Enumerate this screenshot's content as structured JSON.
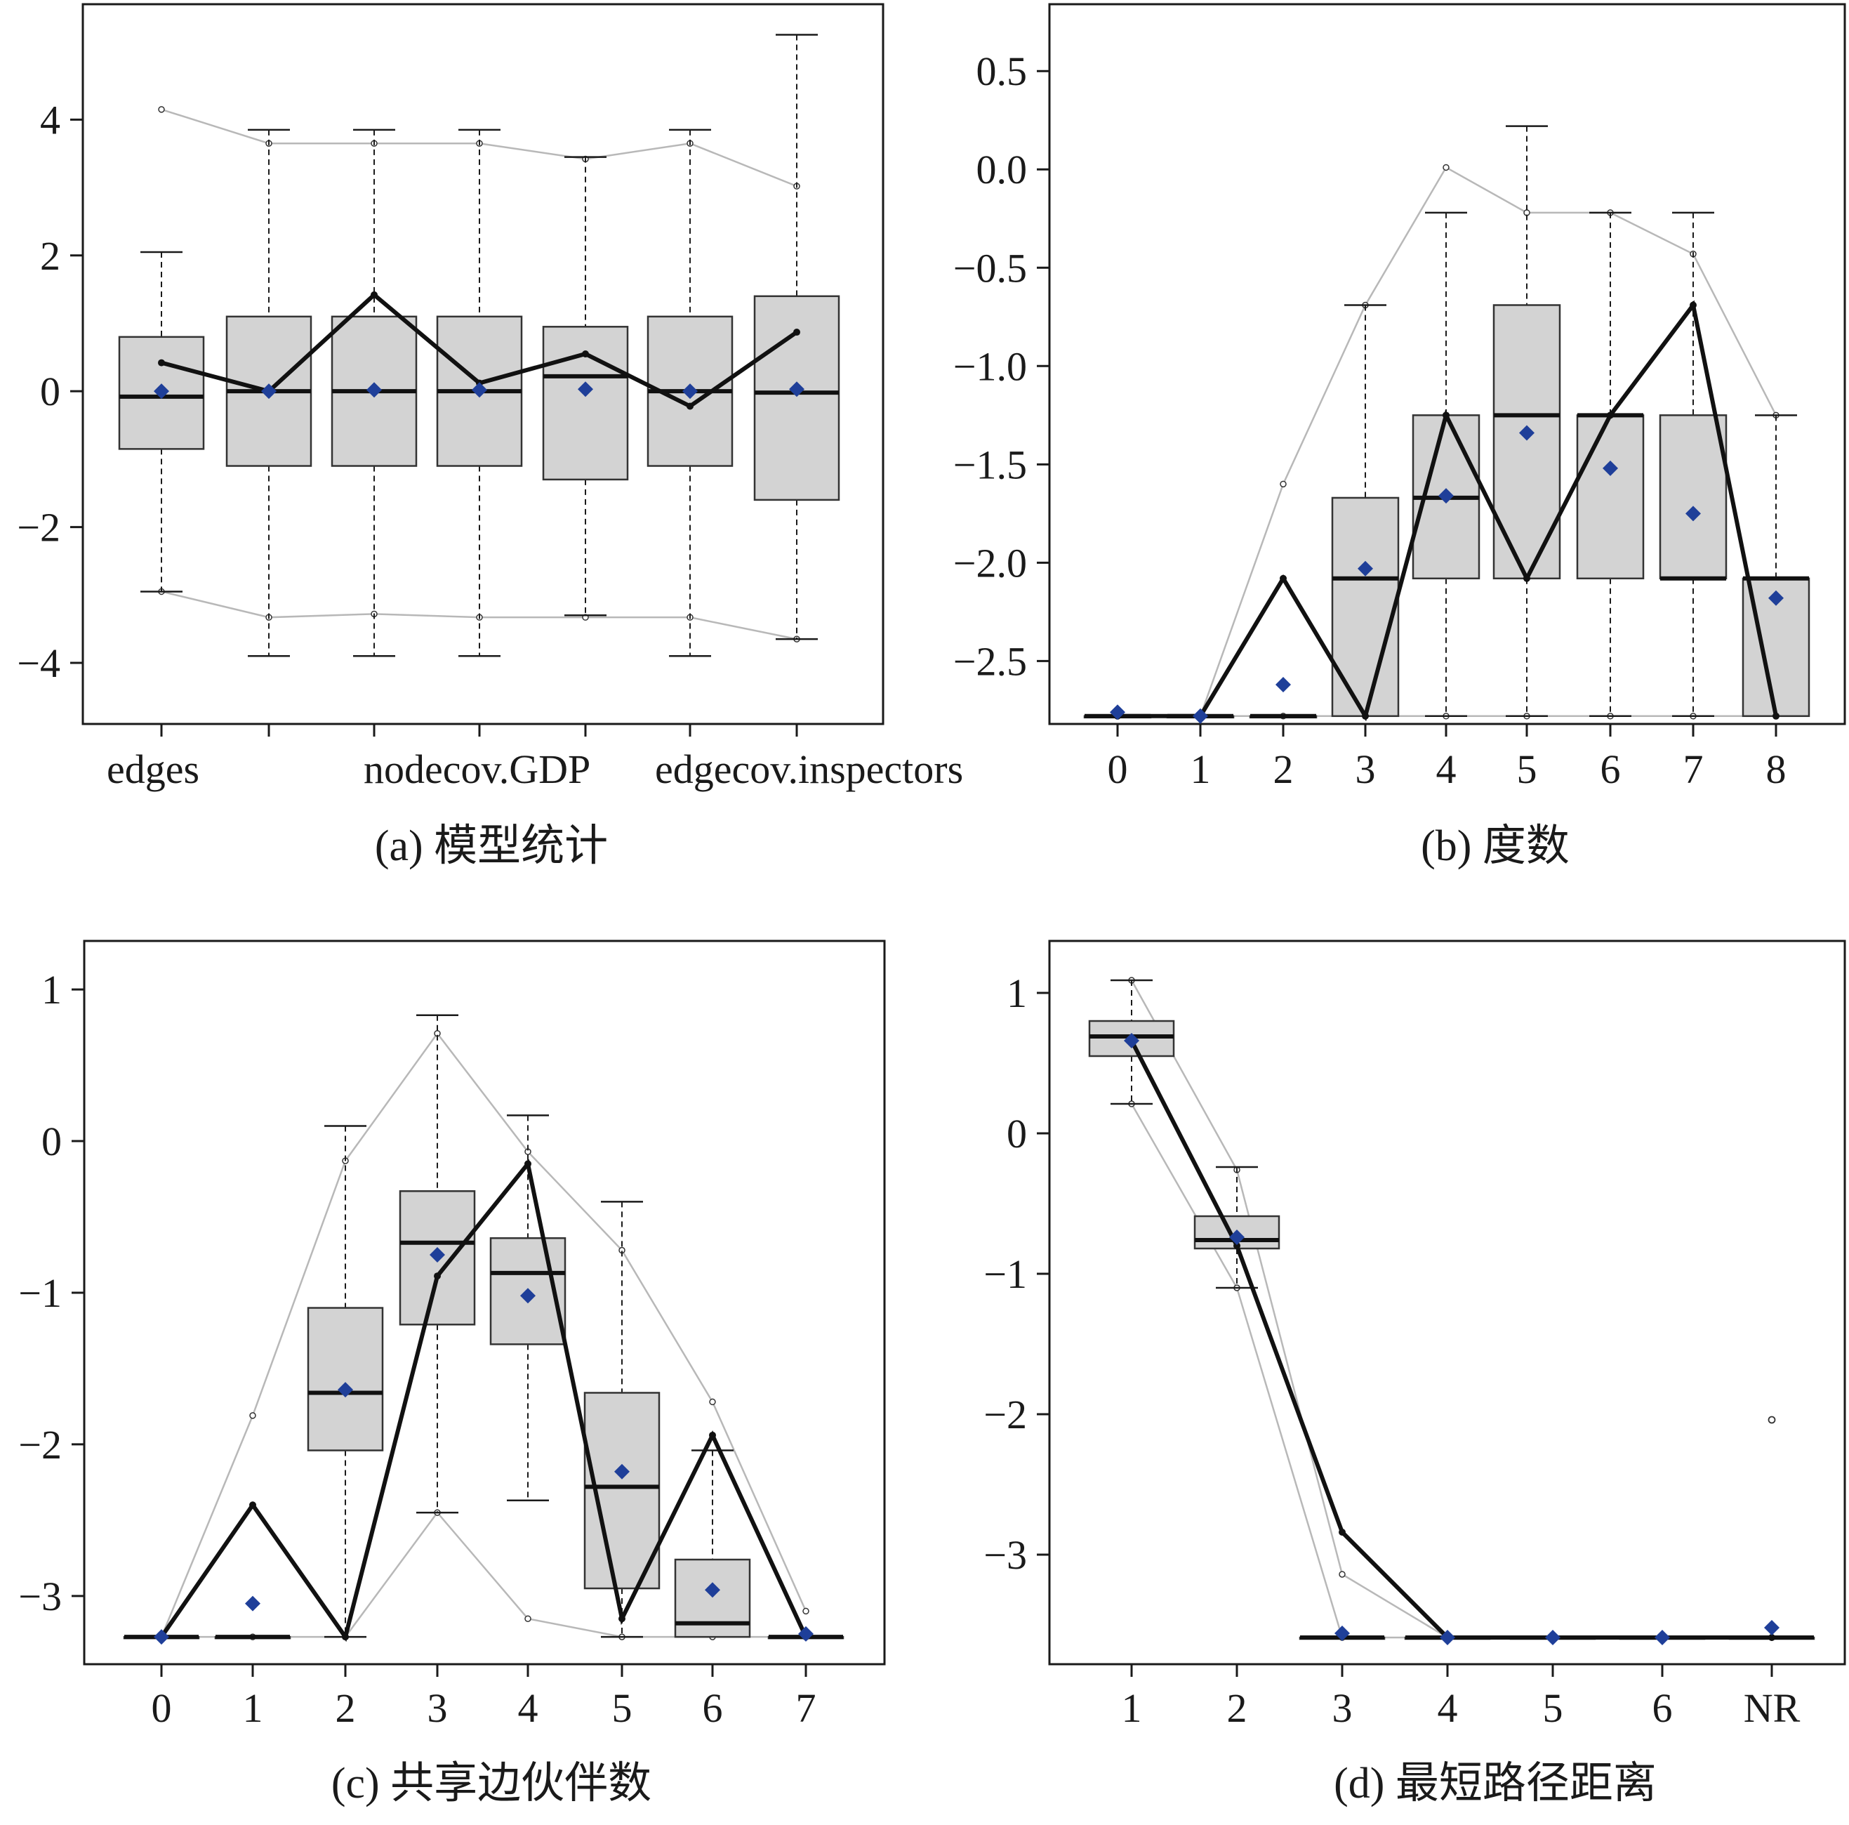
{
  "chart_data": [
    {
      "type": "box",
      "caption": "(a) 模型统计",
      "categories": [
        "edges",
        "",
        "",
        "",
        "nodecov.GDP",
        "",
        "edgecov.inspectors"
      ],
      "y_ticks": [
        4,
        2,
        0,
        -2,
        -4
      ],
      "ylim": [
        -4.9,
        5.7
      ],
      "boxes": [
        {
          "whisker_low": -2.95,
          "q1": -0.85,
          "median": -0.08,
          "q3": 0.8,
          "whisker_high": 2.05
        },
        {
          "whisker_low": -3.9,
          "q1": -1.1,
          "median": 0.0,
          "q3": 1.1,
          "whisker_high": 3.85
        },
        {
          "whisker_low": -3.9,
          "q1": -1.1,
          "median": 0.0,
          "q3": 1.1,
          "whisker_high": 3.85
        },
        {
          "whisker_low": -3.9,
          "q1": -1.1,
          "median": 0.0,
          "q3": 1.1,
          "whisker_high": 3.85
        },
        {
          "whisker_low": -3.3,
          "q1": -1.3,
          "median": 0.22,
          "q3": 0.95,
          "whisker_high": 3.45
        },
        {
          "whisker_low": -3.9,
          "q1": -1.1,
          "median": 0.0,
          "q3": 1.1,
          "whisker_high": 3.85
        },
        {
          "whisker_low": -3.65,
          "q1": -1.6,
          "median": -0.02,
          "q3": 1.4,
          "whisker_high": 5.25
        }
      ],
      "means": [
        0.0,
        0.0,
        0.02,
        0.02,
        0.03,
        0.0,
        0.03
      ],
      "observed": [
        0.42,
        0.0,
        1.42,
        0.12,
        0.55,
        -0.22,
        0.87
      ],
      "upper_band": [
        4.15,
        3.65,
        3.65,
        3.65,
        3.42,
        3.65,
        3.02
      ],
      "lower_band": [
        -2.95,
        -3.33,
        -3.28,
        -3.33,
        -3.33,
        -3.33,
        -3.65
      ],
      "median_display": [
        1,
        1,
        1,
        1,
        1,
        1,
        1
      ]
    },
    {
      "type": "box",
      "caption": "(b) 度数",
      "categories": [
        "0",
        "1",
        "2",
        "3",
        "4",
        "5",
        "6",
        "7",
        "8"
      ],
      "y_ticks": [
        0.5,
        0.0,
        -0.5,
        -1.0,
        -1.5,
        -2.0,
        -2.5
      ],
      "y_tick_labels": [
        "0.5",
        "0.0",
        "−0.5",
        "−1.0",
        "−1.5",
        "−2.0",
        "−2.5"
      ],
      "ylim": [
        -2.82,
        0.84
      ],
      "boxes": [
        {
          "whisker_low": -2.78,
          "q1": -2.78,
          "median": -2.78,
          "q3": -2.78,
          "whisker_high": -2.78
        },
        {
          "whisker_low": -2.78,
          "q1": -2.78,
          "median": -2.78,
          "q3": -2.78,
          "whisker_high": -2.78
        },
        {
          "whisker_low": -2.78,
          "q1": -2.78,
          "median": -2.78,
          "q3": -2.78,
          "whisker_high": -2.78
        },
        {
          "whisker_low": -2.78,
          "q1": -2.78,
          "median": -2.08,
          "q3": -1.67,
          "whisker_high": -0.69
        },
        {
          "whisker_low": -2.78,
          "q1": -2.08,
          "median": -1.67,
          "q3": -1.25,
          "whisker_high": -0.22
        },
        {
          "whisker_low": -2.78,
          "q1": -2.08,
          "median": -1.25,
          "q3": -0.69,
          "whisker_high": 0.22
        },
        {
          "whisker_low": -2.78,
          "q1": -2.08,
          "median": -1.25,
          "q3": -1.25,
          "whisker_high": -0.22
        },
        {
          "whisker_low": -2.78,
          "q1": -2.08,
          "median": -2.08,
          "q3": -1.25,
          "whisker_high": -0.22
        },
        {
          "whisker_low": -2.78,
          "q1": -2.78,
          "median": -2.08,
          "q3": -2.08,
          "whisker_high": -1.25
        }
      ],
      "means": [
        -2.76,
        -2.78,
        -2.62,
        -2.03,
        -1.66,
        -1.34,
        -1.52,
        -1.75,
        -2.18
      ],
      "observed": [
        -2.78,
        -2.78,
        -2.08,
        -2.78,
        -1.25,
        -2.08,
        -1.25,
        -0.69,
        -2.78
      ],
      "upper_band": [
        -2.78,
        -2.78,
        -1.6,
        -0.69,
        0.01,
        -0.22,
        -0.22,
        -0.43,
        -1.25
      ],
      "lower_band": [
        -2.78,
        -2.78,
        -2.78,
        -2.78,
        -2.78,
        -2.78,
        -2.78,
        -2.78,
        -2.78
      ],
      "median_display": [
        0.9,
        0.4,
        0.4,
        0.95,
        0.95,
        0.95,
        0.95,
        0.95,
        0.95
      ]
    },
    {
      "type": "box",
      "caption": "(c) 共享边伙伴数",
      "categories": [
        "0",
        "1",
        "2",
        "3",
        "4",
        "5",
        "6",
        "7"
      ],
      "y_ticks": [
        1,
        0,
        -1,
        -2,
        -3
      ],
      "ylim": [
        -3.45,
        1.32
      ],
      "boxes": [
        {
          "whisker_low": -3.27,
          "q1": -3.27,
          "median": -3.27,
          "q3": -3.27,
          "whisker_high": -3.27
        },
        {
          "whisker_low": -3.27,
          "q1": -3.27,
          "median": -3.27,
          "q3": -3.27,
          "whisker_high": -3.27
        },
        {
          "whisker_low": -3.27,
          "q1": -2.04,
          "median": -1.66,
          "q3": -1.1,
          "whisker_high": 0.1
        },
        {
          "whisker_low": -2.45,
          "q1": -1.21,
          "median": -0.67,
          "q3": -0.33,
          "whisker_high": 0.83
        },
        {
          "whisker_low": -2.37,
          "q1": -1.34,
          "median": -0.87,
          "q3": -0.64,
          "whisker_high": 0.17
        },
        {
          "whisker_low": -3.27,
          "q1": -2.95,
          "median": -2.28,
          "q3": -1.66,
          "whisker_high": -0.4
        },
        {
          "whisker_low": -3.27,
          "q1": -3.27,
          "median": -3.18,
          "q3": -2.76,
          "whisker_high": -2.04
        },
        {
          "whisker_low": -3.27,
          "q1": -3.27,
          "median": -3.27,
          "q3": -3.27,
          "whisker_high": -3.27
        }
      ],
      "means": [
        -3.27,
        -3.05,
        -1.64,
        -0.75,
        -1.02,
        -2.18,
        -2.96,
        -3.25
      ],
      "observed": [
        -3.27,
        -2.4,
        -3.27,
        -0.89,
        -0.15,
        -3.15,
        -1.94,
        -3.27
      ],
      "upper_band": [
        -3.27,
        -1.81,
        -0.13,
        0.71,
        -0.07,
        -0.72,
        -1.72,
        -3.1
      ],
      "lower_band": [
        -3.27,
        -3.27,
        -3.27,
        -2.45,
        -3.15,
        -3.27,
        -3.27,
        -3.27
      ],
      "median_display": [
        0.9,
        0.9,
        0.9,
        0.9,
        0.9,
        0.9,
        0.9,
        0.9
      ]
    },
    {
      "type": "box",
      "caption": "(d) 最短路径距离",
      "categories": [
        "1",
        "2",
        "3",
        "4",
        "5",
        "6",
        "NR"
      ],
      "y_ticks": [
        1,
        0,
        -1,
        -2,
        -3
      ],
      "ylim": [
        -3.78,
        1.37
      ],
      "boxes": [
        {
          "whisker_low": 0.21,
          "q1": 0.55,
          "median": 0.69,
          "q3": 0.8,
          "whisker_high": 1.09
        },
        {
          "whisker_low": -1.1,
          "q1": -0.82,
          "median": -0.76,
          "q3": -0.59,
          "whisker_high": -0.24
        },
        {
          "whisker_low": -3.59,
          "q1": -3.59,
          "median": -3.59,
          "q3": -3.59,
          "whisker_high": -3.59
        },
        {
          "whisker_low": -3.59,
          "q1": -3.59,
          "median": -3.59,
          "q3": -3.59,
          "whisker_high": -3.59
        },
        {
          "whisker_low": -3.59,
          "q1": -3.59,
          "median": -3.59,
          "q3": -3.59,
          "whisker_high": -3.59
        },
        {
          "whisker_low": -3.59,
          "q1": -3.59,
          "median": -3.59,
          "q3": -3.59,
          "whisker_high": -3.59
        },
        {
          "whisker_low": -3.59,
          "q1": -3.59,
          "median": -3.59,
          "q3": -3.59,
          "whisker_high": -3.59
        }
      ],
      "means": [
        0.66,
        -0.74,
        -3.56,
        -3.59,
        -3.59,
        -3.59,
        -3.52
      ],
      "observed": [
        0.66,
        -0.8,
        -2.84,
        -3.59,
        -3.59,
        -3.59,
        -3.59
      ],
      "upper_band": [
        1.09,
        -0.26,
        -3.14,
        -3.59,
        -3.59,
        -3.59,
        -3.59
      ],
      "lower_band": [
        0.21,
        -1.1,
        -3.59,
        -3.59,
        -3.59,
        -3.59,
        -3.59
      ],
      "outliers": [
        {
          "category": "NR",
          "value": -2.04
        }
      ],
      "median_display": [
        0.9,
        0.9,
        0.9,
        0.9,
        0.9,
        0.9,
        0.9
      ]
    }
  ],
  "colors": {
    "box_fill": "#d3d3d3",
    "mean_marker": "#1f3f99",
    "observed_line": "#111111",
    "band_line": "#b8b8b8"
  }
}
